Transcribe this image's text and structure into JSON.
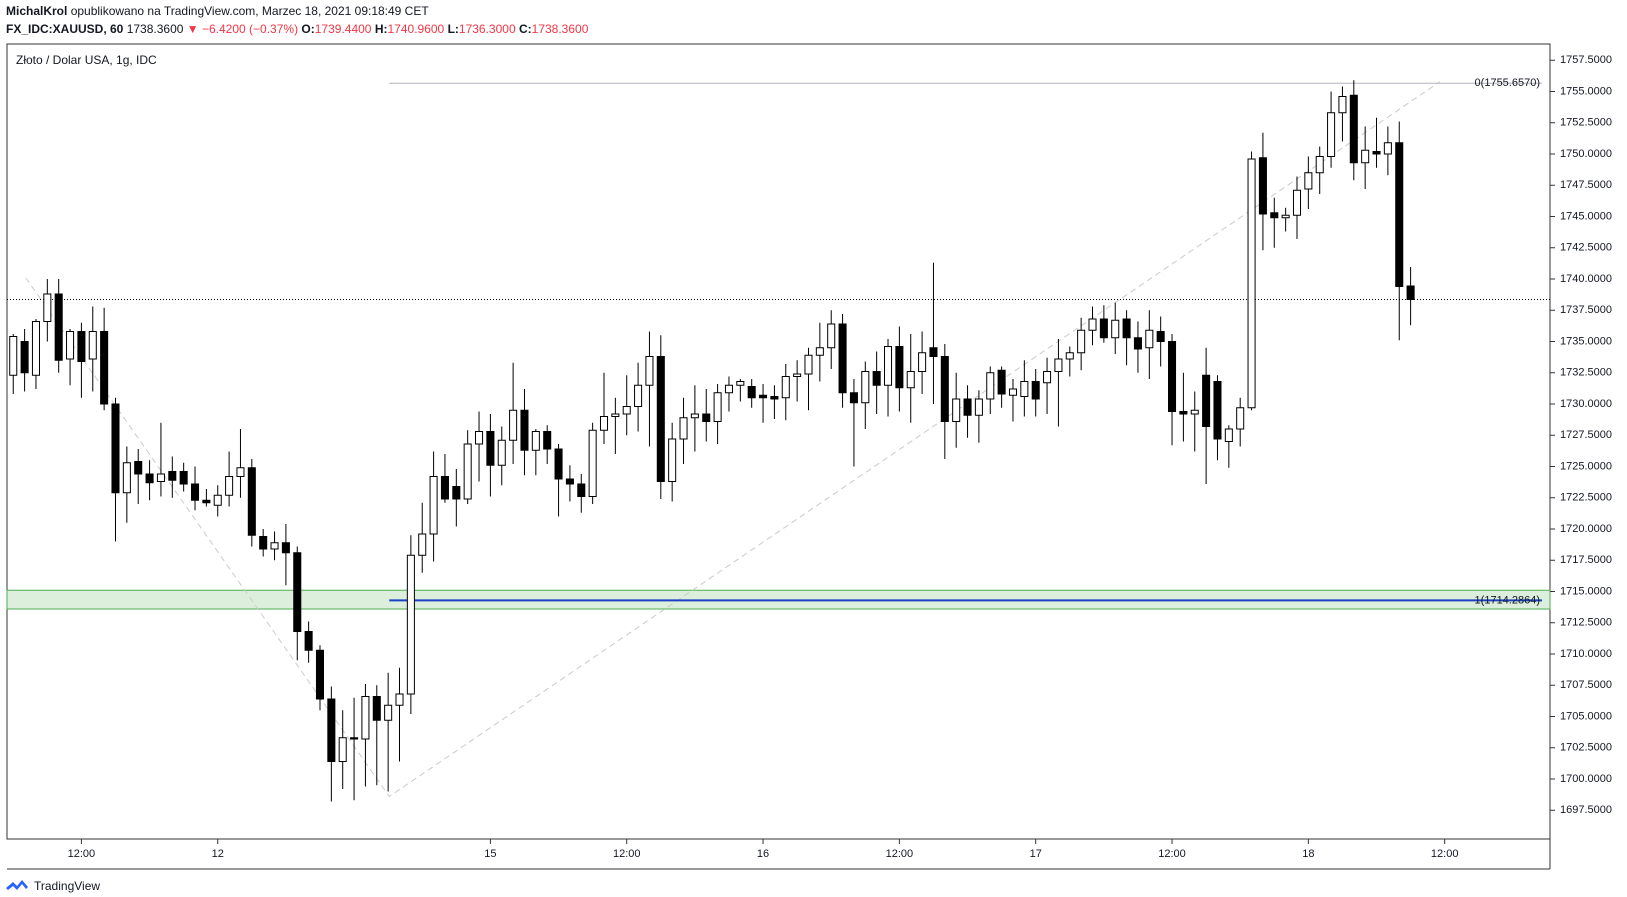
{
  "header": {
    "author": "MichalKrol",
    "published": "opublikowano na TradingView.com, Marzec 18, 2021 09:18:49 CET",
    "symbol": "FX_IDC:XAUUSD, 60",
    "last": "1738.3600",
    "change": "▼ −6.4200 (−0.37%)",
    "ohlc": [
      {
        "key": "O:",
        "value": "1739.4400"
      },
      {
        "key": "H:",
        "value": "1740.9600"
      },
      {
        "key": "L:",
        "value": "1736.3000"
      },
      {
        "key": "C:",
        "value": "1738.3600"
      }
    ]
  },
  "chart_data": {
    "type": "candlestick",
    "title": "Złoto / Dolar USA, 1g, IDC",
    "open": [
      1732.3,
      1735,
      1732.3,
      1736.6,
      1738.8,
      1733.6,
      1735.8,
      1733.6,
      1735.8,
      1730,
      1722.9,
      1725.4,
      1724.4,
      1723.8,
      1724.6,
      1724.6,
      1723.6,
      1722.3,
      1721.9,
      1722.7,
      1724.2,
      1724.9,
      1719.4,
      1718.4,
      1718.9,
      1718.1,
      1711.8,
      1710.3,
      1706.4,
      1701.4,
      1703.3,
      1703.2,
      1706.6,
      1704.7,
      1705.9,
      1706.8,
      1717.9,
      1719.6,
      1724.2,
      1723.4,
      1722.4,
      1726.8,
      1727.8,
      1725.1,
      1727.1,
      1729.5,
      1726.3,
      1727.8,
      1726.4,
      1724.0,
      1723.6,
      1722.6,
      1727.9,
      1729.0,
      1729.2,
      1729.8,
      1731.5,
      1733.8,
      1723.8,
      1727.2,
      1728.9,
      1729.2,
      1728.6,
      1730.9,
      1731.5,
      1731.4,
      1730.7,
      1730.6,
      1730.5,
      1732.2,
      1732.4,
      1733.9,
      1734.5,
      1736.4,
      1730.9,
      1730.1,
      1732.6,
      1731.5,
      1734.6,
      1731.3,
      1732.6,
      1734.5,
      1733.8,
      1728.6,
      1730.4,
      1729.1,
      1730.4,
      1732.7,
      1730.7,
      1730.6,
      1731.8,
      1731.7,
      1732.6,
      1733.6,
      1734.1,
      1735.9,
      1736.8,
      1735.3,
      1736.8,
      1735.3,
      1734.5,
      1735.8,
      1735.0,
      1729.4,
      1729.2,
      1732.3,
      1731.8,
      1727.0,
      1728.0,
      1729.7,
      1749.7,
      1745.3,
      1744.9,
      1745.1,
      1747.2,
      1748.5,
      1749.8,
      1753.3,
      1754.7,
      1749.3,
      1750.2,
      1750.0,
      1750.9,
      1739.44
    ],
    "high": [
      1735.6,
      1736,
      1736.8,
      1740,
      1740,
      1736,
      1736.5,
      1737.8,
      1737.7,
      1730.5,
      1726.6,
      1726.4,
      1725.5,
      1728.5,
      1725.8,
      1725.3,
      1725.0,
      1723.2,
      1723.5,
      1726.2,
      1728.0,
      1725.6,
      1720.0,
      1719.8,
      1720.4,
      1718.6,
      1712.6,
      1710.7,
      1707.4,
      1705.5,
      1706.5,
      1707.6,
      1707.5,
      1708.5,
      1708.9,
      1719.5,
      1722.1,
      1726.2,
      1726.0,
      1724.8,
      1727.9,
      1729.4,
      1729.2,
      1728.2,
      1733.3,
      1731.2,
      1728.0,
      1728.3,
      1726.8,
      1725.1,
      1724.4,
      1728.5,
      1732.5,
      1730.5,
      1732.3,
      1733.3,
      1735.8,
      1735.5,
      1728.5,
      1730.5,
      1731.5,
      1731.2,
      1731.6,
      1732.2,
      1732.0,
      1732.0,
      1731.6,
      1731.5,
      1733.2,
      1733.5,
      1734.5,
      1736.5,
      1737.5,
      1737.2,
      1732.0,
      1733.4,
      1734.2,
      1735.2,
      1736.2,
      1735.6,
      1735.8,
      1741.3,
      1734.8,
      1732.5,
      1731.5,
      1731.1,
      1733.0,
      1733.0,
      1732.0,
      1733.5,
      1732.8,
      1733.7,
      1735.2,
      1734.6,
      1736.9,
      1737.8,
      1737.9,
      1738.1,
      1737.5,
      1736.6,
      1737.5,
      1737.0,
      1735.6,
      1732.5,
      1731.0,
      1734.5,
      1732.3,
      1728.3,
      1730.5,
      1750.2,
      1751.7,
      1746.5,
      1745.7,
      1748.2,
      1749.8,
      1750.6,
      1755.0,
      1755.4,
      1755.9,
      1752.2,
      1752.9,
      1752.2,
      1752.6,
      1740.96
    ],
    "low": [
      1730.8,
      1731,
      1731.2,
      1735,
      1732.5,
      1731.5,
      1730.5,
      1731,
      1729.5,
      1719,
      1720.5,
      1722,
      1722.3,
      1722.6,
      1722.5,
      1723.0,
      1721.5,
      1721.8,
      1721.0,
      1721.8,
      1722.5,
      1718.6,
      1717.8,
      1717.5,
      1715.5,
      1709.5,
      1709.3,
      1705.5,
      1698.2,
      1699.2,
      1698.3,
      1699.4,
      1699.5,
      1699.0,
      1701.4,
      1705.2,
      1716.5,
      1717.4,
      1722.1,
      1720.2,
      1722.0,
      1723.8,
      1722.6,
      1723.5,
      1725.2,
      1724.3,
      1724.3,
      1725.2,
      1721.0,
      1722.2,
      1721.3,
      1722.0,
      1726.8,
      1726.0,
      1727.5,
      1727.8,
      1726.6,
      1722.4,
      1722.2,
      1725.2,
      1726.2,
      1727.0,
      1726.8,
      1729.4,
      1730.2,
      1729.7,
      1728.5,
      1728.8,
      1728.7,
      1730.2,
      1729.5,
      1731.8,
      1732.8,
      1729.7,
      1725.0,
      1728.0,
      1729.2,
      1729.0,
      1729.4,
      1728.5,
      1730.8,
      1730.0,
      1725.6,
      1726.5,
      1727.3,
      1726.9,
      1729.2,
      1729.7,
      1728.6,
      1729.0,
      1729.0,
      1729.2,
      1728.2,
      1732.2,
      1732.7,
      1734.7,
      1734.9,
      1734.0,
      1733.1,
      1732.5,
      1732.0,
      1733.0,
      1726.7,
      1727.0,
      1726.2,
      1723.6,
      1725.5,
      1724.9,
      1726.6,
      1729.5,
      1742.3,
      1742.5,
      1743.8,
      1743.2,
      1745.6,
      1746.8,
      1748.9,
      1751.0,
      1747.9,
      1747.2,
      1748.9,
      1748.3,
      1735.1,
      1736.3
    ],
    "close": [
      1735.4,
      1732.5,
      1736.6,
      1738.8,
      1733.5,
      1735.8,
      1733.4,
      1735.8,
      1730,
      1722.9,
      1725.3,
      1724.4,
      1723.7,
      1724.4,
      1723.9,
      1723.6,
      1722.3,
      1722.1,
      1722.7,
      1724.2,
      1724.9,
      1719.5,
      1718.4,
      1718.9,
      1718.1,
      1711.8,
      1710.3,
      1706.4,
      1701.4,
      1703.3,
      1703.2,
      1706.6,
      1704.7,
      1705.9,
      1706.8,
      1717.9,
      1719.6,
      1724.2,
      1722.4,
      1722.4,
      1726.8,
      1727.8,
      1725.1,
      1727.1,
      1729.5,
      1726.3,
      1727.8,
      1726.4,
      1724.0,
      1723.6,
      1722.6,
      1727.9,
      1729.0,
      1729.2,
      1729.8,
      1731.5,
      1733.8,
      1723.8,
      1727.2,
      1728.9,
      1729.2,
      1728.6,
      1730.9,
      1731.5,
      1731.8,
      1730.5,
      1730.5,
      1730.4,
      1732.2,
      1732.4,
      1733.9,
      1734.5,
      1736.4,
      1730.9,
      1730.1,
      1732.6,
      1731.5,
      1734.6,
      1731.3,
      1732.6,
      1734.1,
      1733.8,
      1728.6,
      1730.4,
      1729.1,
      1730.4,
      1732.5,
      1730.8,
      1731.2,
      1731.8,
      1730.4,
      1732.6,
      1733.6,
      1734.1,
      1735.9,
      1736.8,
      1735.3,
      1736.7,
      1735.3,
      1734.4,
      1735.9,
      1735.0,
      1729.4,
      1729.2,
      1729.5,
      1728.2,
      1727.2,
      1728.0,
      1729.7,
      1749.6,
      1745.2,
      1744.9,
      1745.1,
      1747.1,
      1748.5,
      1749.8,
      1753.3,
      1754.6,
      1749.3,
      1750.3,
      1750.0,
      1750.9,
      1739.4,
      1738.36
    ],
    "colors": {
      "up": "#ffffff",
      "down": "#000000",
      "outline": "#000000"
    },
    "xlim": [
      -0.55,
      135.27
    ],
    "ylim": [
      1695.2,
      1758.8
    ],
    "xticks": [
      {
        "value": 6,
        "label": "12:00"
      },
      {
        "value": 18,
        "label": "12"
      },
      {
        "value": 42,
        "label": "15"
      },
      {
        "value": 54,
        "label": "12:00"
      },
      {
        "value": 66,
        "label": "16"
      },
      {
        "value": 78,
        "label": "12:00"
      },
      {
        "value": 90,
        "label": "17"
      },
      {
        "value": 102,
        "label": "12:00"
      },
      {
        "value": 114,
        "label": "18"
      },
      {
        "value": 126,
        "label": "12:00"
      }
    ],
    "yticks": [
      {
        "value": 1697.5,
        "label": "1697.5000"
      },
      {
        "value": 1700,
        "label": "1700.0000"
      },
      {
        "value": 1702.5,
        "label": "1702.5000"
      },
      {
        "value": 1705,
        "label": "1705.0000"
      },
      {
        "value": 1707.5,
        "label": "1707.5000"
      },
      {
        "value": 1710,
        "label": "1710.0000"
      },
      {
        "value": 1712.5,
        "label": "1712.5000"
      },
      {
        "value": 1715,
        "label": "1715.0000"
      },
      {
        "value": 1717.5,
        "label": "1717.5000"
      },
      {
        "value": 1720,
        "label": "1720.0000"
      },
      {
        "value": 1722.5,
        "label": "1722.5000"
      },
      {
        "value": 1725,
        "label": "1725.0000"
      },
      {
        "value": 1727.5,
        "label": "1727.5000"
      },
      {
        "value": 1730,
        "label": "1730.0000"
      },
      {
        "value": 1732.5,
        "label": "1732.5000"
      },
      {
        "value": 1735,
        "label": "1735.0000"
      },
      {
        "value": 1737.5,
        "label": "1737.5000"
      },
      {
        "value": 1740,
        "label": "1740.0000"
      },
      {
        "value": 1742.5,
        "label": "1742.5000"
      },
      {
        "value": 1745,
        "label": "1745.0000"
      },
      {
        "value": 1747.5,
        "label": "1747.5000"
      },
      {
        "value": 1750,
        "label": "1750.0000"
      },
      {
        "value": 1752.5,
        "label": "1752.5000"
      },
      {
        "value": 1755,
        "label": "1755.0000"
      },
      {
        "value": 1757.5,
        "label": "1757.5000"
      }
    ],
    "price_line": true,
    "fib_levels": [
      {
        "value": 1755.657,
        "label": "0(1755.6570)",
        "color": "#b2b5be"
      },
      {
        "value": 1714.2864,
        "label": "1(1714.2864)",
        "color": "#1c3fc4"
      }
    ],
    "zone": {
      "ylim": [
        1713.6,
        1715.1
      ],
      "color": "#4caf50"
    },
    "trend_line": {
      "x": [
        1.1,
        33.1,
        125.6
      ],
      "y": [
        1740.1,
        1698.6,
        1755.8
      ],
      "color": "#cccccc"
    }
  },
  "footer": {
    "brand": "TradingView"
  }
}
